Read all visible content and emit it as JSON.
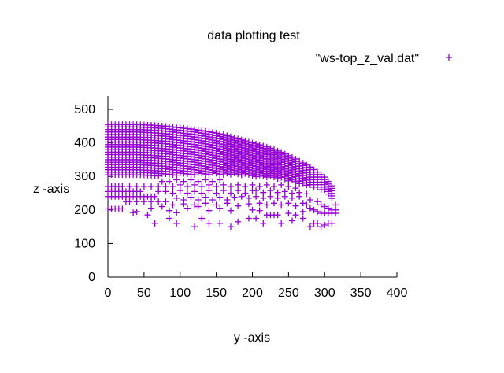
{
  "chart_data": {
    "type": "scatter",
    "title": "data plotting test",
    "xlabel": "y -axis",
    "ylabel": "z -axis",
    "xlim": [
      0,
      400
    ],
    "ylim": [
      0,
      540
    ],
    "xticks": [
      0,
      50,
      100,
      150,
      200,
      250,
      300,
      350,
      400
    ],
    "yticks": [
      0,
      100,
      200,
      300,
      400,
      500
    ],
    "grid": false,
    "legend_position": "top-right",
    "marker": "plus",
    "series": [
      {
        "name": "\"ws-top_z_val.dat\"",
        "color": "#9400d3",
        "top_boundary": [
          [
            0,
            455
          ],
          [
            40,
            455
          ],
          [
            60,
            453
          ],
          [
            80,
            450
          ],
          [
            100,
            445
          ],
          [
            120,
            440
          ],
          [
            140,
            433
          ],
          [
            160,
            425
          ],
          [
            180,
            412
          ],
          [
            200,
            400
          ],
          [
            220,
            388
          ],
          [
            240,
            372
          ],
          [
            260,
            352
          ],
          [
            280,
            328
          ],
          [
            300,
            298
          ],
          [
            310,
            272
          ],
          [
            315,
            215
          ]
        ],
        "dense_lower_boundary": [
          [
            0,
            300
          ],
          [
            40,
            300
          ],
          [
            80,
            302
          ],
          [
            120,
            304
          ],
          [
            160,
            305
          ],
          [
            200,
            300
          ],
          [
            240,
            292
          ],
          [
            280,
            270
          ],
          [
            300,
            255
          ],
          [
            315,
            215
          ]
        ],
        "sparse_points": [
          [
            0,
            270
          ],
          [
            5,
            270
          ],
          [
            10,
            270
          ],
          [
            15,
            270
          ],
          [
            20,
            270
          ],
          [
            0,
            255
          ],
          [
            5,
            255
          ],
          [
            10,
            255
          ],
          [
            15,
            255
          ],
          [
            20,
            255
          ],
          [
            25,
            255
          ],
          [
            30,
            255
          ],
          [
            35,
            255
          ],
          [
            40,
            255
          ],
          [
            45,
            255
          ],
          [
            0,
            240
          ],
          [
            5,
            240
          ],
          [
            10,
            240
          ],
          [
            15,
            240
          ],
          [
            20,
            240
          ],
          [
            25,
            240
          ],
          [
            30,
            240
          ],
          [
            35,
            240
          ],
          [
            40,
            240
          ],
          [
            45,
            240
          ],
          [
            50,
            240
          ],
          [
            55,
            240
          ],
          [
            60,
            240
          ],
          [
            65,
            240
          ],
          [
            0,
            203
          ],
          [
            5,
            203
          ],
          [
            10,
            203
          ],
          [
            15,
            203
          ],
          [
            20,
            203
          ],
          [
            25,
            225
          ],
          [
            30,
            225
          ],
          [
            40,
            225
          ],
          [
            50,
            225
          ],
          [
            60,
            225
          ],
          [
            70,
            225
          ],
          [
            80,
            225
          ],
          [
            30,
            270
          ],
          [
            40,
            270
          ],
          [
            50,
            270
          ],
          [
            60,
            270
          ],
          [
            70,
            270
          ],
          [
            80,
            270
          ],
          [
            70,
            255
          ],
          [
            80,
            255
          ],
          [
            90,
            250
          ],
          [
            100,
            258
          ],
          [
            110,
            250
          ],
          [
            75,
            285
          ],
          [
            85,
            285
          ],
          [
            95,
            290
          ],
          [
            105,
            285
          ],
          [
            115,
            290
          ],
          [
            125,
            285
          ],
          [
            135,
            290
          ],
          [
            145,
            285
          ],
          [
            155,
            290
          ],
          [
            90,
            270
          ],
          [
            100,
            275
          ],
          [
            110,
            270
          ],
          [
            120,
            275
          ],
          [
            130,
            270
          ],
          [
            140,
            275
          ],
          [
            150,
            270
          ],
          [
            160,
            275
          ],
          [
            170,
            270
          ],
          [
            95,
            235
          ],
          [
            105,
            230
          ],
          [
            115,
            238
          ],
          [
            125,
            230
          ],
          [
            135,
            238
          ],
          [
            145,
            230
          ],
          [
            155,
            238
          ],
          [
            165,
            230
          ],
          [
            175,
            238
          ],
          [
            120,
            255
          ],
          [
            130,
            250
          ],
          [
            140,
            258
          ],
          [
            150,
            250
          ],
          [
            160,
            258
          ],
          [
            170,
            250
          ],
          [
            180,
            258
          ],
          [
            190,
            250
          ],
          [
            200,
            258
          ],
          [
            180,
            275
          ],
          [
            190,
            270
          ],
          [
            200,
            275
          ],
          [
            210,
            270
          ],
          [
            220,
            275
          ],
          [
            230,
            270
          ],
          [
            240,
            275
          ],
          [
            250,
            270
          ],
          [
            260,
            265
          ],
          [
            185,
            240
          ],
          [
            195,
            235
          ],
          [
            205,
            240
          ],
          [
            215,
            235
          ],
          [
            225,
            240
          ],
          [
            235,
            235
          ],
          [
            245,
            240
          ],
          [
            255,
            235
          ],
          [
            265,
            240
          ],
          [
            205,
            258
          ],
          [
            215,
            252
          ],
          [
            225,
            258
          ],
          [
            235,
            252
          ],
          [
            245,
            255
          ],
          [
            255,
            250
          ],
          [
            265,
            252
          ],
          [
            275,
            248
          ],
          [
            210,
            220
          ],
          [
            220,
            215
          ],
          [
            230,
            220
          ],
          [
            240,
            215
          ],
          [
            250,
            220
          ],
          [
            260,
            212
          ],
          [
            40,
            195
          ],
          [
            35,
            192
          ],
          [
            55,
            185
          ],
          [
            85,
            198
          ],
          [
            95,
            192
          ],
          [
            110,
            205
          ],
          [
            125,
            210
          ],
          [
            140,
            198
          ],
          [
            155,
            205
          ],
          [
            170,
            198
          ],
          [
            60,
            205
          ],
          [
            75,
            210
          ],
          [
            90,
            215
          ],
          [
            105,
            218
          ],
          [
            120,
            215
          ],
          [
            135,
            220
          ],
          [
            150,
            215
          ],
          [
            165,
            220
          ],
          [
            180,
            212
          ],
          [
            195,
            218
          ],
          [
            200,
            200
          ],
          [
            210,
            198
          ],
          [
            220,
            185
          ],
          [
            225,
            185
          ],
          [
            230,
            185
          ],
          [
            235,
            185
          ],
          [
            250,
            190
          ],
          [
            260,
            185
          ],
          [
            270,
            195
          ],
          [
            65,
            160
          ],
          [
            85,
            175
          ],
          [
            95,
            160
          ],
          [
            120,
            150
          ],
          [
            130,
            175
          ],
          [
            140,
            160
          ],
          [
            155,
            160
          ],
          [
            170,
            150
          ],
          [
            180,
            165
          ],
          [
            195,
            175
          ],
          [
            205,
            175
          ],
          [
            215,
            160
          ],
          [
            240,
            160
          ],
          [
            255,
            168
          ],
          [
            270,
            175
          ],
          [
            280,
            150
          ],
          [
            285,
            160
          ],
          [
            290,
            160
          ],
          [
            295,
            150
          ],
          [
            300,
            155
          ],
          [
            305,
            160
          ],
          [
            310,
            160
          ],
          [
            270,
            220
          ],
          [
            275,
            215
          ],
          [
            280,
            205
          ],
          [
            285,
            200
          ],
          [
            290,
            195
          ],
          [
            295,
            190
          ],
          [
            300,
            190
          ],
          [
            305,
            190
          ],
          [
            310,
            190
          ],
          [
            315,
            190
          ],
          [
            280,
            230
          ],
          [
            290,
            225
          ],
          [
            295,
            215
          ],
          [
            300,
            210
          ],
          [
            305,
            205
          ],
          [
            310,
            200
          ],
          [
            315,
            200
          ]
        ]
      }
    ]
  }
}
